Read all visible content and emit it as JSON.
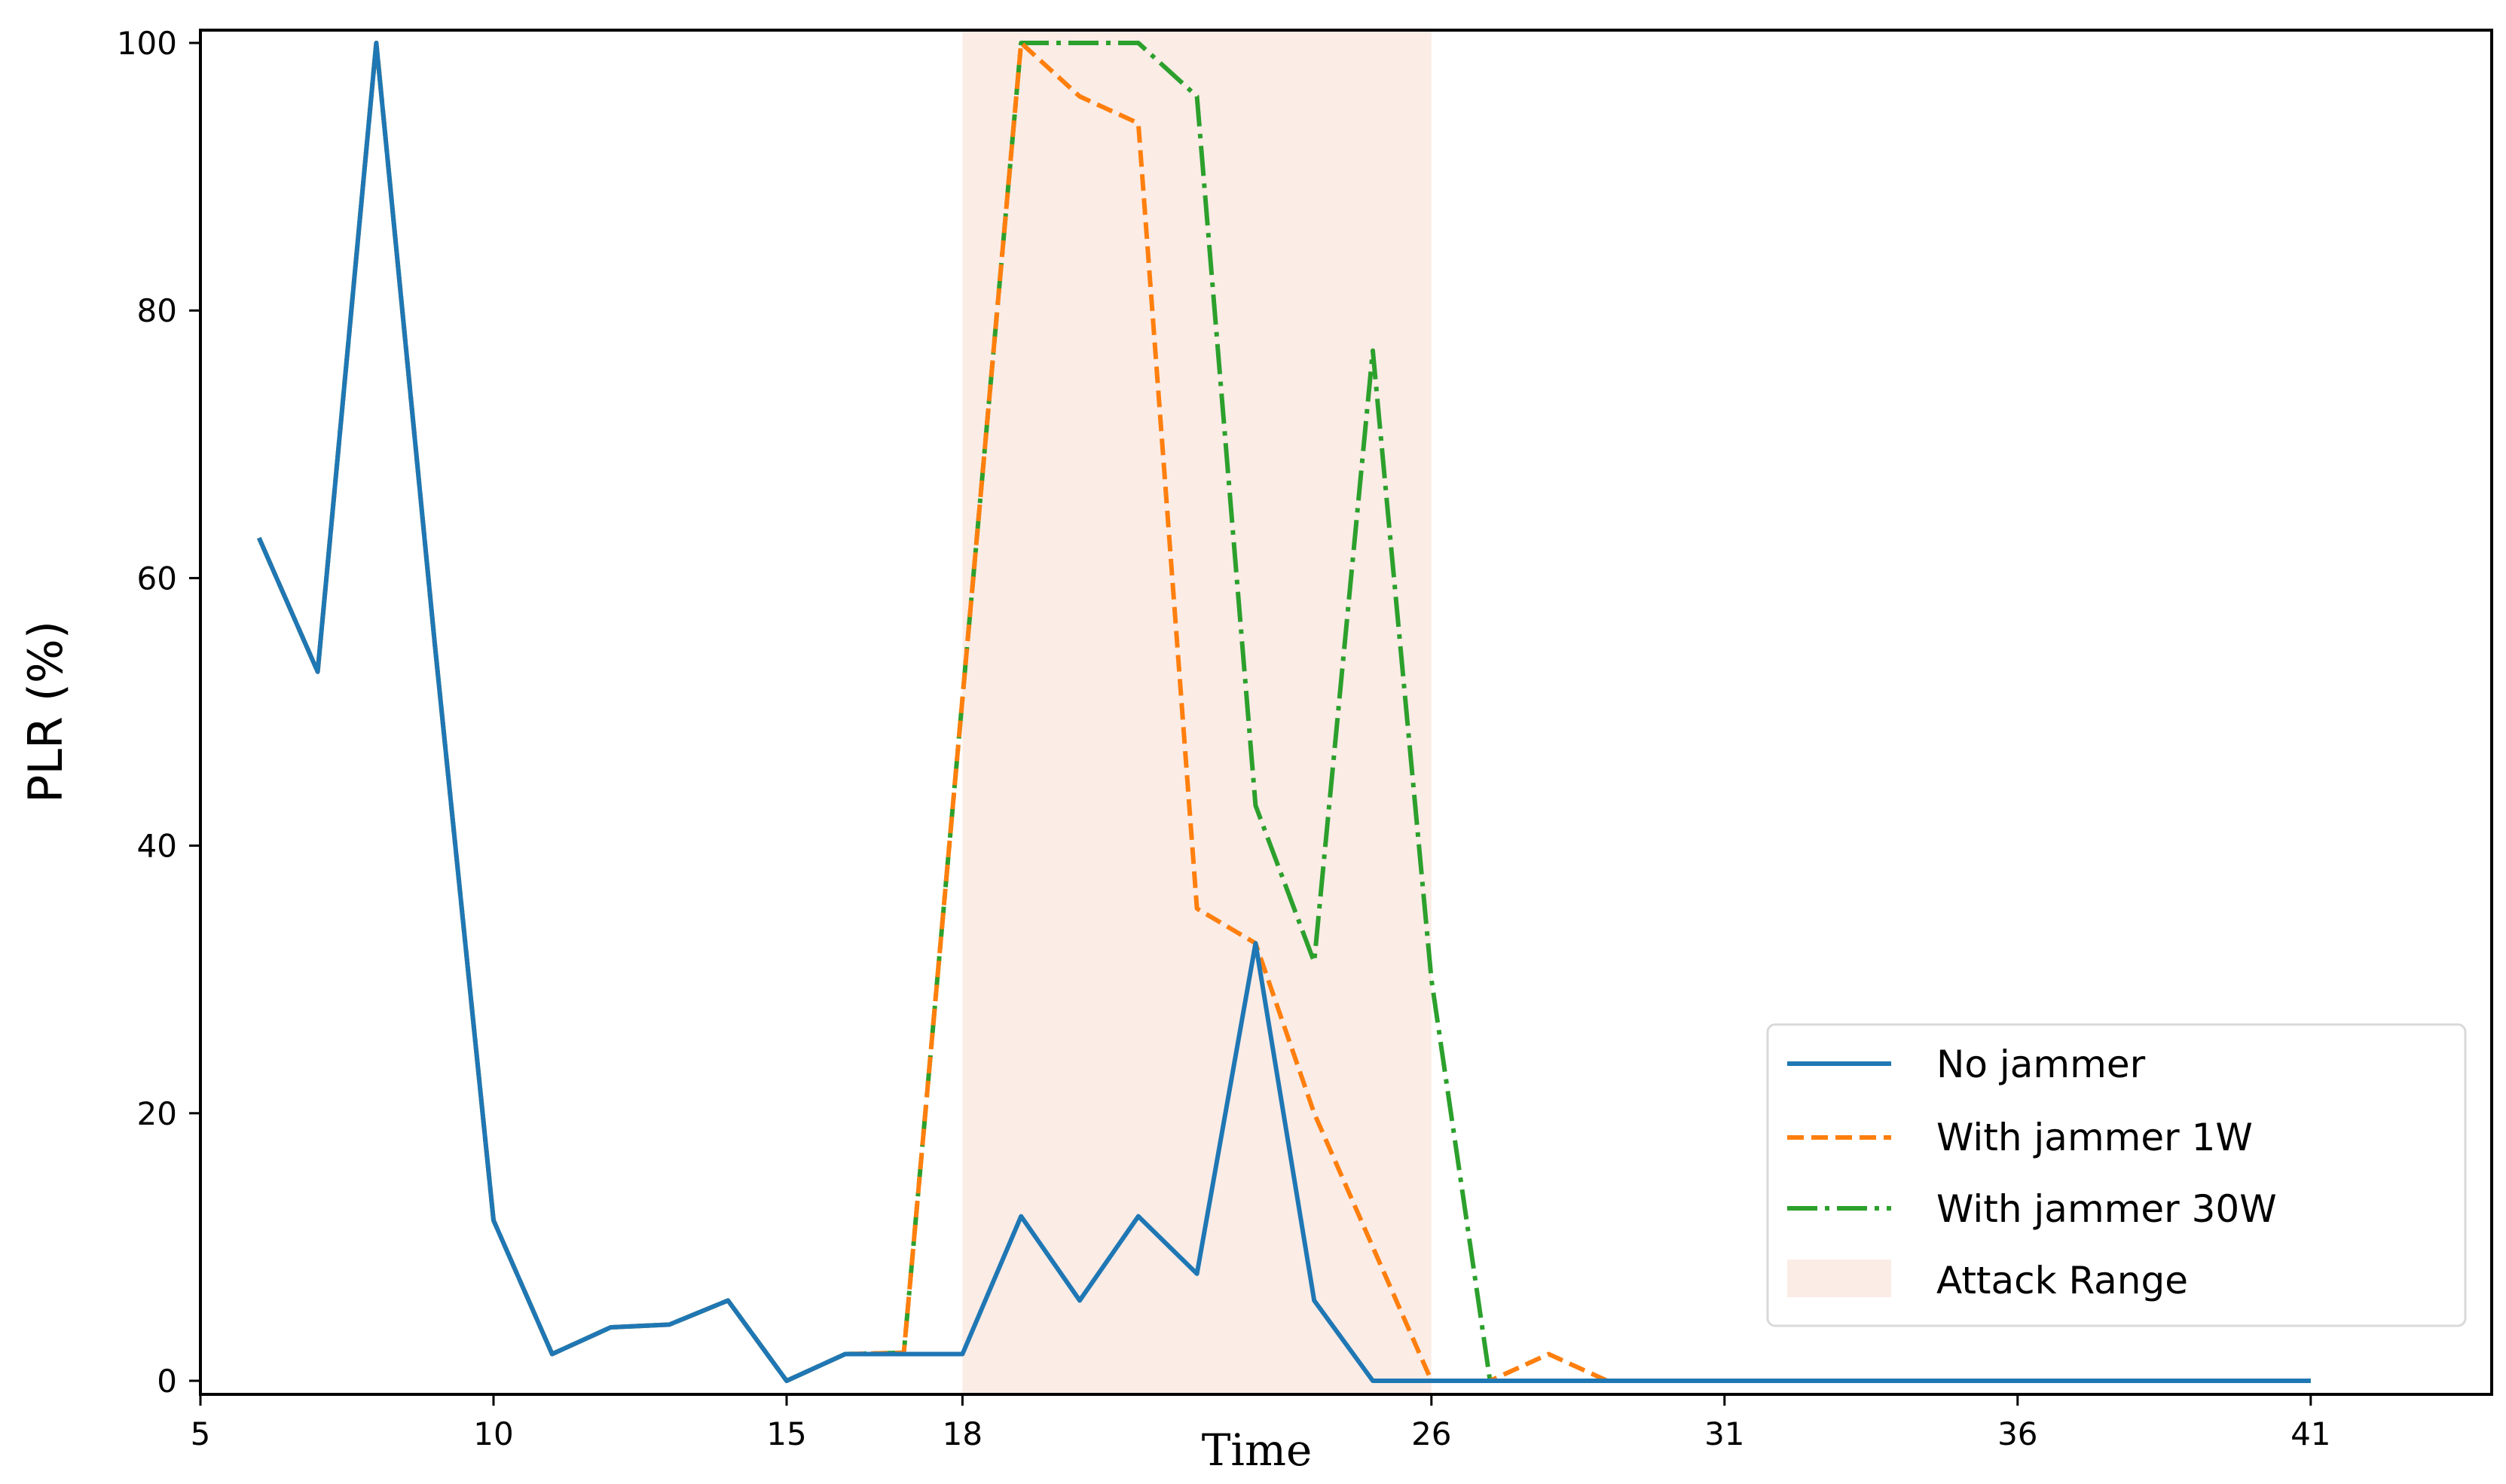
{
  "chart_data": {
    "type": "line",
    "title": "",
    "xlabel": "Time",
    "ylabel": "PLR (%)",
    "xlim": [
      5,
      44
    ],
    "ylim": [
      -1,
      101
    ],
    "xticks": [
      5,
      10,
      15,
      18,
      26,
      31,
      36,
      41
    ],
    "yticks": [
      0,
      20,
      40,
      60,
      80,
      100
    ],
    "grid": false,
    "legend_position": "lower right",
    "shaded_region": {
      "label": "Attack Range",
      "x_start": 18,
      "x_end": 26,
      "color": "#fbece6"
    },
    "x": [
      6,
      7,
      8,
      9,
      10,
      11,
      12,
      13,
      14,
      15,
      16,
      17,
      18,
      19,
      20,
      21,
      22,
      23,
      24,
      25,
      26,
      27,
      28,
      29,
      30,
      31,
      32,
      33,
      34,
      35,
      36,
      37,
      38,
      39,
      40,
      41
    ],
    "series": [
      {
        "name": "No jammer",
        "color": "#1f77b4",
        "style": "solid",
        "values": [
          63,
          53,
          100,
          55,
          12,
          2,
          4,
          4.2,
          6,
          0,
          2,
          2,
          2,
          12.3,
          6,
          12.3,
          8,
          32.7,
          6,
          0,
          0,
          0,
          0,
          0,
          0,
          0,
          0,
          0,
          0,
          0,
          0,
          0,
          0,
          0,
          0,
          0
        ]
      },
      {
        "name": "With jammer 1W",
        "color": "#ff7f0e",
        "style": "dashed",
        "values": [
          63,
          53,
          100,
          55,
          12,
          2,
          4,
          4.2,
          6,
          0,
          2,
          2.1,
          51,
          100,
          96,
          94,
          35.3,
          32.7,
          20,
          10,
          0,
          0,
          2,
          0,
          0,
          0,
          0,
          0,
          0,
          0,
          0,
          0,
          0,
          0,
          0,
          0
        ]
      },
      {
        "name": "With jammer 30W",
        "color": "#2ca02c",
        "style": "dashdot",
        "values": [
          63,
          53,
          100,
          55,
          12,
          2,
          4,
          4.2,
          6,
          0,
          2,
          2.1,
          51,
          100,
          100,
          100,
          96,
          43,
          31.3,
          77,
          30,
          0,
          0,
          0,
          0,
          0,
          0,
          0,
          0,
          0,
          0,
          0,
          0,
          0,
          0,
          0
        ]
      }
    ]
  },
  "legend": {
    "items": [
      {
        "label": "No jammer"
      },
      {
        "label": "With jammer 1W"
      },
      {
        "label": "With jammer 30W"
      },
      {
        "label": "Attack Range"
      }
    ]
  },
  "axes": {
    "xlabel": "Time",
    "ylabel": "PLR (%)"
  }
}
